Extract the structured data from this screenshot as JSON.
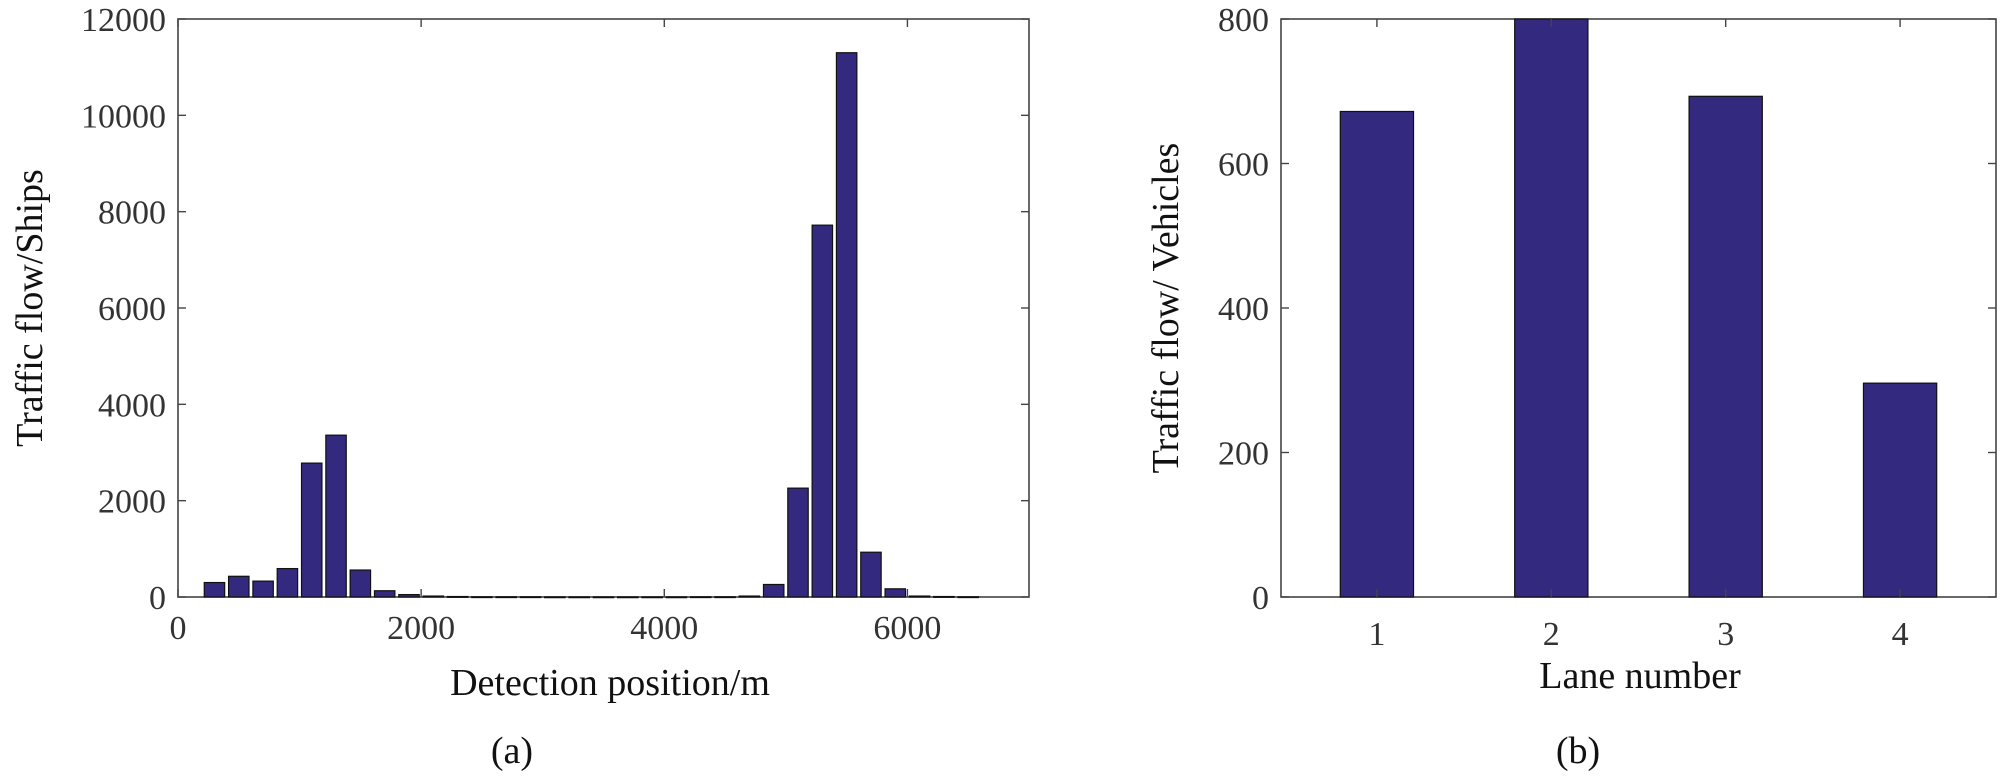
{
  "chart_data": [
    {
      "id": "a",
      "type": "bar",
      "caption": "(a)",
      "title": "",
      "xlabel": "Detection position/m",
      "ylabel": "Traffic flow/Ships",
      "xlim": [
        0,
        7000
      ],
      "ylim": [
        0,
        12000
      ],
      "xticks": [
        0,
        2000,
        4000,
        6000
      ],
      "yticks": [
        0,
        2000,
        4000,
        6000,
        8000,
        10000,
        12000
      ],
      "bar_color": "#332A7F",
      "bar_width": 200,
      "x": [
        300,
        500,
        700,
        900,
        1100,
        1300,
        1500,
        1700,
        1900,
        2100,
        2300,
        2500,
        2700,
        2900,
        3100,
        3300,
        3500,
        3700,
        3900,
        4100,
        4300,
        4500,
        4700,
        4900,
        5100,
        5300,
        5500,
        5700,
        5900,
        6100,
        6300,
        6500
      ],
      "values": [
        300,
        430,
        330,
        590,
        2780,
        3360,
        560,
        130,
        50,
        20,
        10,
        5,
        5,
        5,
        3,
        3,
        3,
        3,
        3,
        3,
        5,
        5,
        20,
        260,
        2260,
        7720,
        11300,
        930,
        170,
        20,
        10,
        5
      ],
      "grid": false
    },
    {
      "id": "b",
      "type": "bar",
      "caption": "(b)",
      "title": "",
      "xlabel": "Lane number",
      "ylabel": "Traffic flow/ Vehicles",
      "categories": [
        "1",
        "2",
        "3",
        "4"
      ],
      "values": [
        672,
        800,
        693,
        296
      ],
      "ylim": [
        0,
        800
      ],
      "yticks": [
        0,
        200,
        400,
        600,
        800
      ],
      "bar_color": "#332A7F",
      "grid": false
    }
  ]
}
